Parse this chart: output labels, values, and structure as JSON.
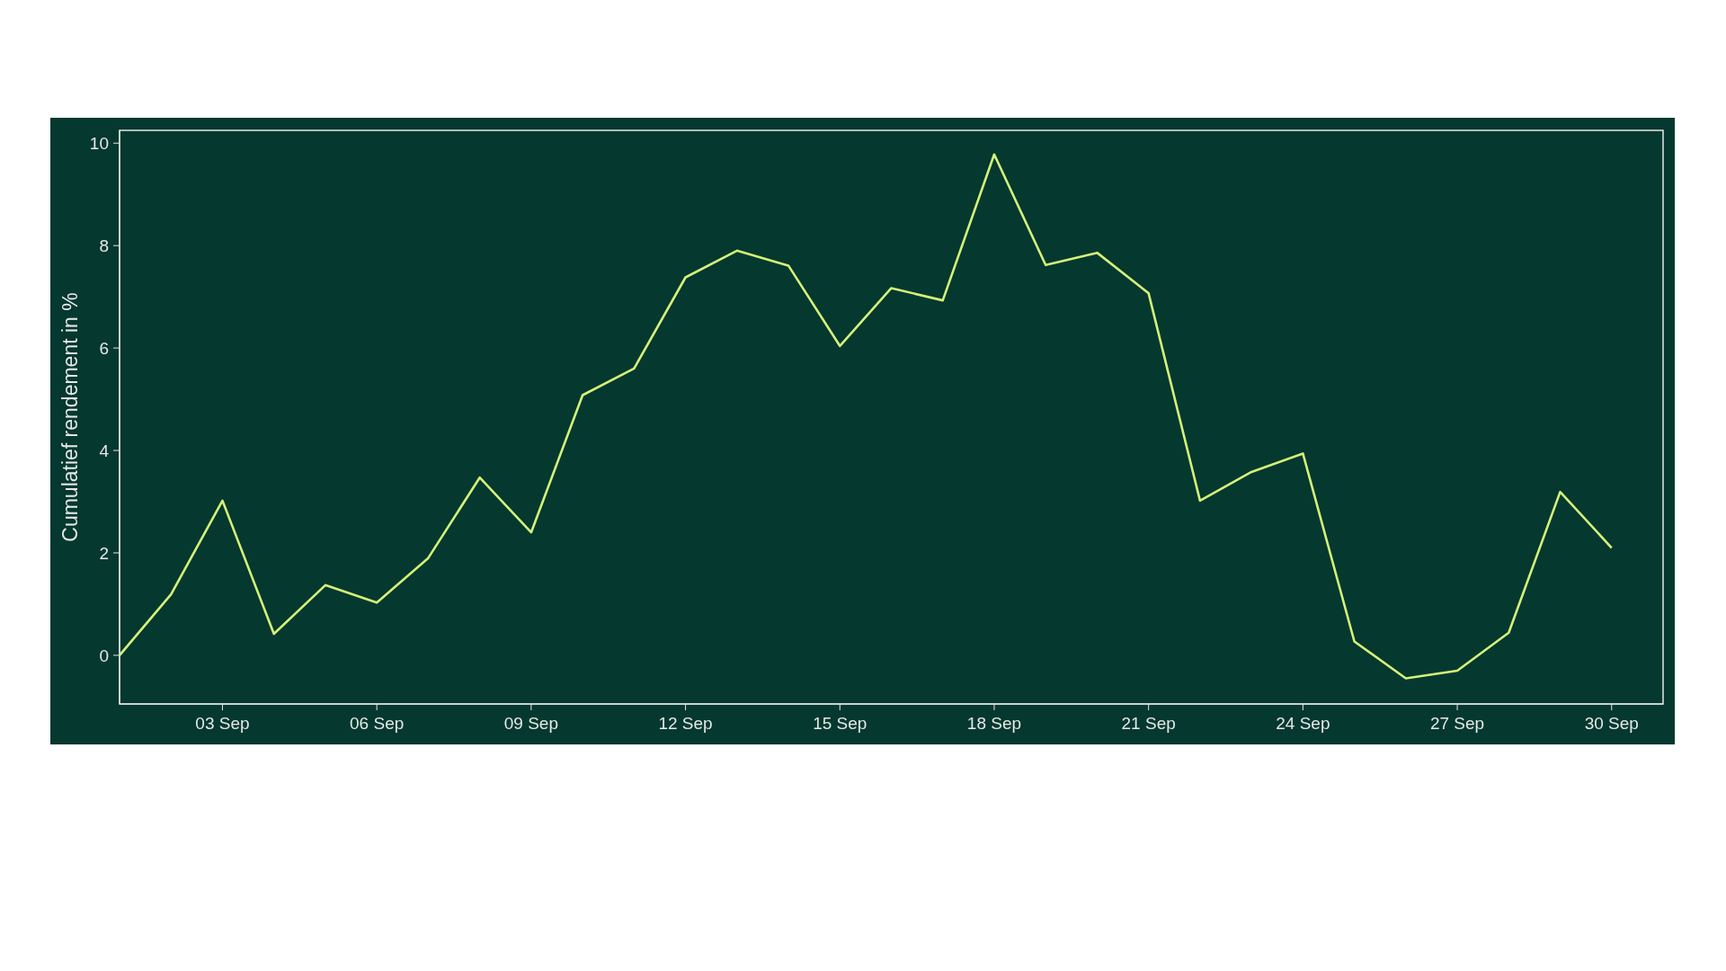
{
  "chart_data": {
    "type": "line",
    "ylabel": "Cumulatief rendement in %",
    "x": [
      "--09-01",
      "--09-02",
      "--09-03",
      "--09-04",
      "--09-05",
      "--09-06",
      "--09-07",
      "--09-08",
      "--09-09",
      "--09-10",
      "--09-11",
      "--09-12",
      "--09-13",
      "--09-14",
      "--09-15",
      "--09-16",
      "--09-17",
      "--09-18",
      "--09-19",
      "--09-20",
      "--09-21",
      "--09-22",
      "--09-23",
      "--09-24",
      "--09-25",
      "--09-26",
      "--09-27",
      "--09-28",
      "--09-29",
      "--09-30"
    ],
    "values": [
      0,
      1.19,
      3.02,
      0.42,
      1.37,
      1.03,
      1.9,
      3.47,
      2.4,
      5.08,
      5.6,
      7.38,
      7.9,
      7.61,
      6.04,
      7.17,
      6.93,
      9.78,
      7.62,
      7.86,
      7.07,
      3.02,
      3.58,
      3.94,
      0.27,
      -0.45,
      -0.3,
      0.44,
      3.19,
      2.1
    ],
    "color": "#d5f279",
    "marker": "none",
    "xlim": [
      "--09-01",
      "--10-01"
    ],
    "xticks": [
      {
        "value": "--09-03",
        "label": "03 Sep"
      },
      {
        "value": "--09-06",
        "label": "06 Sep"
      },
      {
        "value": "--09-09",
        "label": "09 Sep"
      },
      {
        "value": "--09-12",
        "label": "12 Sep"
      },
      {
        "value": "--09-15",
        "label": "15 Sep"
      },
      {
        "value": "--09-18",
        "label": "18 Sep"
      },
      {
        "value": "--09-21",
        "label": "21 Sep"
      },
      {
        "value": "--09-24",
        "label": "24 Sep"
      },
      {
        "value": "--09-27",
        "label": "27 Sep"
      },
      {
        "value": "--09-30",
        "label": "30 Sep"
      }
    ],
    "ylim": [
      -0.95,
      10.25
    ],
    "yticks": [
      0,
      2,
      4,
      6,
      8,
      10
    ]
  }
}
